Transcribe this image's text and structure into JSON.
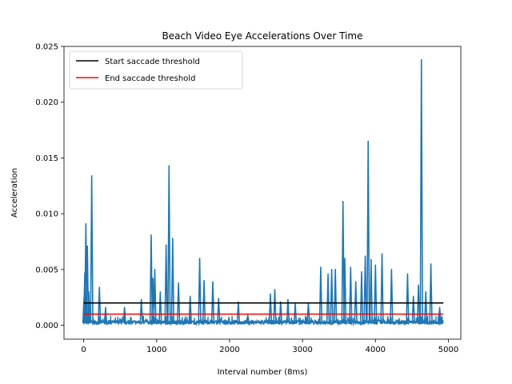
{
  "chart_data": {
    "type": "line",
    "title": "Beach Video Eye Accelerations Over Time",
    "xlabel": "Interval number (8ms)",
    "ylabel": "Acceleration",
    "xlim": [
      -270,
      5170
    ],
    "ylim": [
      -0.00125,
      0.025
    ],
    "xticks": [
      0,
      1000,
      2000,
      3000,
      4000,
      5000
    ],
    "xtick_labels": [
      "0",
      "1000",
      "2000",
      "3000",
      "4000",
      "5000"
    ],
    "yticks": [
      0.0,
      0.005,
      0.01,
      0.015,
      0.02,
      0.025
    ],
    "ytick_labels": [
      "0.000",
      "0.005",
      "0.010",
      "0.015",
      "0.020",
      "0.025"
    ],
    "grid": false,
    "legend_position": "top-left",
    "series": [
      {
        "name": "Start saccade threshold",
        "color": "#000000",
        "x": [
          0,
          4930
        ],
        "values": [
          0.002,
          0.002
        ]
      },
      {
        "name": "End saccade threshold",
        "color": "#ff0000",
        "x": [
          0,
          4930
        ],
        "values": [
          0.001,
          0.001
        ]
      }
    ],
    "signal": {
      "color": "#1f77b4",
      "x_start": 0,
      "x_end": 4930,
      "baseline": 0.0003,
      "noise": 0.0004,
      "peaks": [
        {
          "x": 5,
          "y": 0.0025
        },
        {
          "x": 15,
          "y": 0.0047
        },
        {
          "x": 30,
          "y": 0.0091
        },
        {
          "x": 50,
          "y": 0.0071
        },
        {
          "x": 70,
          "y": 0.003
        },
        {
          "x": 110,
          "y": 0.0134
        },
        {
          "x": 215,
          "y": 0.0034
        },
        {
          "x": 300,
          "y": 0.0016
        },
        {
          "x": 560,
          "y": 0.0016
        },
        {
          "x": 790,
          "y": 0.0023
        },
        {
          "x": 925,
          "y": 0.0081
        },
        {
          "x": 950,
          "y": 0.0042
        },
        {
          "x": 975,
          "y": 0.005
        },
        {
          "x": 1050,
          "y": 0.003
        },
        {
          "x": 1130,
          "y": 0.0072
        },
        {
          "x": 1170,
          "y": 0.0143
        },
        {
          "x": 1220,
          "y": 0.0078
        },
        {
          "x": 1300,
          "y": 0.0038
        },
        {
          "x": 1460,
          "y": 0.0026
        },
        {
          "x": 1590,
          "y": 0.006
        },
        {
          "x": 1650,
          "y": 0.004
        },
        {
          "x": 1770,
          "y": 0.0039
        },
        {
          "x": 1850,
          "y": 0.0024
        },
        {
          "x": 2120,
          "y": 0.0021
        },
        {
          "x": 2250,
          "y": 0.0009
        },
        {
          "x": 2560,
          "y": 0.0028
        },
        {
          "x": 2620,
          "y": 0.0032
        },
        {
          "x": 2700,
          "y": 0.0021
        },
        {
          "x": 2800,
          "y": 0.0023
        },
        {
          "x": 2900,
          "y": 0.0019
        },
        {
          "x": 3080,
          "y": 0.002
        },
        {
          "x": 3250,
          "y": 0.0052
        },
        {
          "x": 3350,
          "y": 0.0046
        },
        {
          "x": 3400,
          "y": 0.005
        },
        {
          "x": 3450,
          "y": 0.005
        },
        {
          "x": 3555,
          "y": 0.0111
        },
        {
          "x": 3580,
          "y": 0.006
        },
        {
          "x": 3660,
          "y": 0.0052
        },
        {
          "x": 3730,
          "y": 0.0039
        },
        {
          "x": 3810,
          "y": 0.0048
        },
        {
          "x": 3860,
          "y": 0.0062
        },
        {
          "x": 3900,
          "y": 0.0165
        },
        {
          "x": 3940,
          "y": 0.0059
        },
        {
          "x": 4000,
          "y": 0.0054
        },
        {
          "x": 4090,
          "y": 0.0064
        },
        {
          "x": 4220,
          "y": 0.005
        },
        {
          "x": 4440,
          "y": 0.0046
        },
        {
          "x": 4520,
          "y": 0.0026
        },
        {
          "x": 4590,
          "y": 0.0036
        },
        {
          "x": 4630,
          "y": 0.0238
        },
        {
          "x": 4690,
          "y": 0.003
        },
        {
          "x": 4760,
          "y": 0.0055
        },
        {
          "x": 4880,
          "y": 0.0016
        }
      ]
    }
  }
}
